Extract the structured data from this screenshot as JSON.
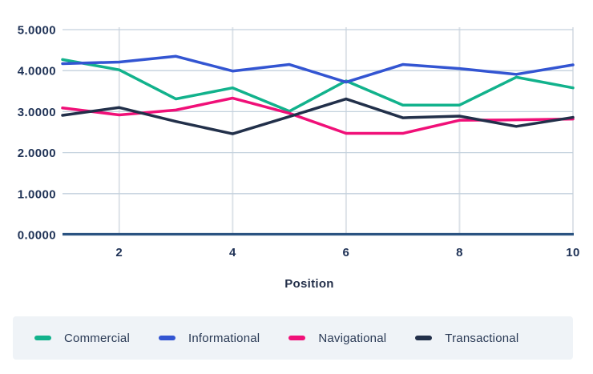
{
  "chart_data": {
    "type": "line",
    "title": "",
    "xlabel": "Position",
    "ylabel": "",
    "x": [
      1,
      2,
      3,
      4,
      5,
      6,
      7,
      8,
      9,
      10
    ],
    "x_tick_positions": [
      2,
      4,
      6,
      8,
      10
    ],
    "x_tick_labels": [
      "2",
      "4",
      "6",
      "8",
      "10"
    ],
    "y_tick_values": [
      0,
      1,
      2,
      3,
      4,
      5
    ],
    "y_tick_labels": [
      "0.0000",
      "1.0000",
      "2.0000",
      "3.0000",
      "4.0000",
      "5.0000"
    ],
    "ylim": [
      0,
      5
    ],
    "xlim": [
      1,
      10
    ],
    "grid": "on",
    "legend_position": "bottom",
    "series": [
      {
        "name": "Commercial",
        "color": "#12b28c",
        "values": [
          4.27,
          4.02,
          3.31,
          3.58,
          3.01,
          3.75,
          3.16,
          3.16,
          3.84,
          3.58
        ]
      },
      {
        "name": "Informational",
        "color": "#3355d2",
        "values": [
          4.17,
          4.21,
          4.35,
          3.99,
          4.15,
          3.72,
          4.15,
          4.05,
          3.91,
          4.14
        ]
      },
      {
        "name": "Navigational",
        "color": "#f01078",
        "values": [
          3.09,
          2.92,
          3.04,
          3.33,
          2.96,
          2.47,
          2.47,
          2.79,
          2.8,
          2.82
        ]
      },
      {
        "name": "Transactional",
        "color": "#22304a",
        "values": [
          2.91,
          3.1,
          2.76,
          2.46,
          2.88,
          3.31,
          2.85,
          2.89,
          2.64,
          2.86
        ]
      }
    ]
  },
  "style": {
    "axis_line_color": "#2b5381",
    "grid_h_color": "#c3d1dd",
    "grid_v_color": "#dde2e8",
    "tick_label_color": "#1f3256",
    "legend_bg": "#eff3f7",
    "legend_text_color": "#2a3a55"
  }
}
